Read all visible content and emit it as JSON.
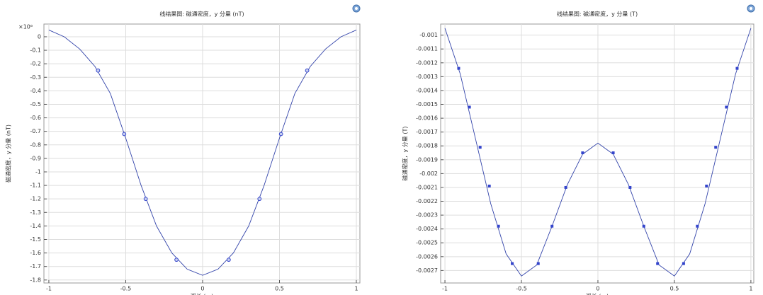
{
  "chart_data": [
    {
      "type": "line",
      "title": "线结果图: 磁通密度，y 分量 (nT)",
      "ylabel": "磁通密度，y 分量 (nT)",
      "xlabel": "弧长 (m)",
      "y_multiplier": "×10⁶",
      "color": "#3344aa",
      "marker_color": "#3344cc",
      "marker": "circle",
      "grid": true,
      "x": [
        -1,
        -0.9,
        -0.8,
        -0.7,
        -0.6,
        -0.5,
        -0.4,
        -0.3,
        -0.2,
        -0.1,
        0,
        0.1,
        0.2,
        0.3,
        0.4,
        0.5,
        0.6,
        0.7,
        0.8,
        0.9,
        1
      ],
      "values": [
        0.05,
        0.0,
        -0.09,
        -0.22,
        -0.42,
        -0.75,
        -1.1,
        -1.4,
        -1.6,
        -1.72,
        -1.765,
        -1.72,
        -1.6,
        -1.4,
        -1.1,
        -0.75,
        -0.42,
        -0.22,
        -0.09,
        0.0,
        0.05
      ],
      "marker_x": [
        -0.68,
        -0.51,
        -0.37,
        -0.17,
        0.17,
        0.37,
        0.51,
        0.68
      ],
      "marker_values": [
        -0.25,
        -0.72,
        -1.2,
        -1.65,
        -1.65,
        -1.2,
        -0.72,
        -0.25
      ],
      "xlim": [
        -1.032,
        1.023
      ],
      "ylim": [
        -1.822,
        0.094
      ],
      "xticks": [
        -1,
        -0.5,
        0,
        0.5,
        1
      ],
      "yticks": [
        0,
        -0.1,
        -0.2,
        -0.3,
        -0.4,
        -0.5,
        -0.6,
        -0.7,
        -0.8,
        -0.9,
        -1,
        -1.1,
        -1.2,
        -1.3,
        -1.4,
        -1.5,
        -1.6,
        -1.7,
        -1.8
      ]
    },
    {
      "type": "line",
      "title": "线结果图: 磁通密度，y 分量 (T)",
      "ylabel": "磁通密度，y 分量 (T)",
      "xlabel": "弧长 (m)",
      "color": "#3344aa",
      "marker_color": "#3344cc",
      "marker": "square",
      "grid": true,
      "x": [
        -1,
        -0.9,
        -0.8,
        -0.7,
        -0.6,
        -0.5,
        -0.4,
        -0.3,
        -0.2,
        -0.1,
        0,
        0.1,
        0.2,
        0.3,
        0.4,
        0.5,
        0.6,
        0.7,
        0.8,
        0.9,
        1
      ],
      "values": [
        -0.00095,
        -0.00128,
        -0.00175,
        -0.00222,
        -0.00258,
        -0.00274,
        -0.00266,
        -0.00238,
        -0.00208,
        -0.00186,
        -0.00178,
        -0.00186,
        -0.00208,
        -0.00238,
        -0.00266,
        -0.00274,
        -0.00258,
        -0.00222,
        -0.00175,
        -0.00128,
        -0.00095
      ],
      "marker_x": [
        -0.91,
        -0.84,
        -0.77,
        -0.71,
        -0.65,
        -0.56,
        -0.39,
        -0.3,
        -0.21,
        -0.1,
        0.1,
        0.21,
        0.3,
        0.39,
        0.56,
        0.65,
        0.71,
        0.77,
        0.84,
        0.91
      ],
      "marker_values": [
        -0.00124,
        -0.00152,
        -0.00181,
        -0.00209,
        -0.00238,
        -0.00265,
        -0.00265,
        -0.00238,
        -0.0021,
        -0.00185,
        -0.00185,
        -0.0021,
        -0.00238,
        -0.00265,
        -0.00265,
        -0.00238,
        -0.00209,
        -0.00181,
        -0.00152,
        -0.00124
      ],
      "xlim": [
        -1.028,
        1.019
      ],
      "ylim": [
        -0.00279,
        -0.00092
      ],
      "xticks": [
        -1,
        -0.5,
        0,
        0.5,
        1
      ],
      "yticks": [
        -0.001,
        -0.0011,
        -0.0012,
        -0.0013,
        -0.0014,
        -0.0015,
        -0.0016,
        -0.0017,
        -0.0018,
        -0.0019,
        -0.002,
        -0.0021,
        -0.0022,
        -0.0023,
        -0.0024,
        -0.0025,
        -0.0026,
        -0.0027
      ]
    }
  ]
}
